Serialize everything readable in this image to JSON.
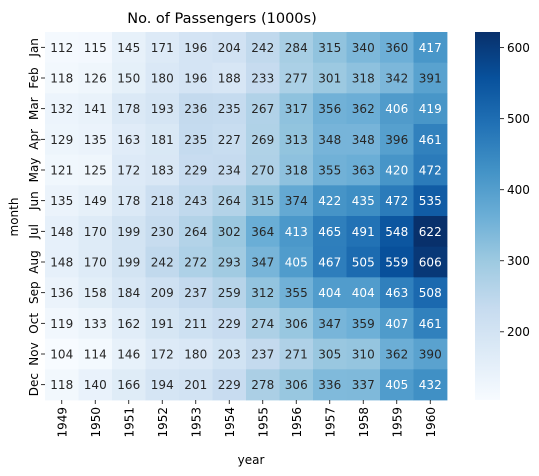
{
  "chart_data": {
    "type": "heatmap",
    "title": "No. of Passengers (1000s)",
    "xlabel": "year",
    "ylabel": "month",
    "x_categories": [
      "1949",
      "1950",
      "1951",
      "1952",
      "1953",
      "1954",
      "1955",
      "1956",
      "1957",
      "1958",
      "1959",
      "1960"
    ],
    "y_categories": [
      "Jan",
      "Feb",
      "Mar",
      "Apr",
      "May",
      "Jun",
      "Jul",
      "Aug",
      "Sep",
      "Oct",
      "Nov",
      "Dec"
    ],
    "values": [
      [
        112,
        115,
        145,
        171,
        196,
        204,
        242,
        284,
        315,
        340,
        360,
        417
      ],
      [
        118,
        126,
        150,
        180,
        196,
        188,
        233,
        277,
        301,
        318,
        342,
        391
      ],
      [
        132,
        141,
        178,
        193,
        236,
        235,
        267,
        317,
        356,
        362,
        406,
        419
      ],
      [
        129,
        135,
        163,
        181,
        235,
        227,
        269,
        313,
        348,
        348,
        396,
        461
      ],
      [
        121,
        125,
        172,
        183,
        229,
        234,
        270,
        318,
        355,
        363,
        420,
        472
      ],
      [
        135,
        149,
        178,
        218,
        243,
        264,
        315,
        374,
        422,
        435,
        472,
        535
      ],
      [
        148,
        170,
        199,
        230,
        264,
        302,
        364,
        413,
        465,
        491,
        548,
        622
      ],
      [
        148,
        170,
        199,
        242,
        272,
        293,
        347,
        405,
        467,
        505,
        559,
        606
      ],
      [
        136,
        158,
        184,
        209,
        237,
        259,
        312,
        355,
        404,
        404,
        463,
        508
      ],
      [
        119,
        133,
        162,
        191,
        211,
        229,
        274,
        306,
        347,
        359,
        407,
        461
      ],
      [
        104,
        114,
        146,
        172,
        180,
        203,
        237,
        271,
        305,
        310,
        362,
        390
      ],
      [
        118,
        140,
        166,
        194,
        201,
        229,
        278,
        306,
        336,
        337,
        405,
        432
      ]
    ],
    "annotations": true,
    "colormap": "Blues",
    "vmin": 104,
    "vmax": 622,
    "colorbar_ticks": [
      200,
      300,
      400,
      500,
      600
    ],
    "colorbar_tick_labels": [
      "200",
      "300",
      "400",
      "500",
      "600"
    ]
  }
}
